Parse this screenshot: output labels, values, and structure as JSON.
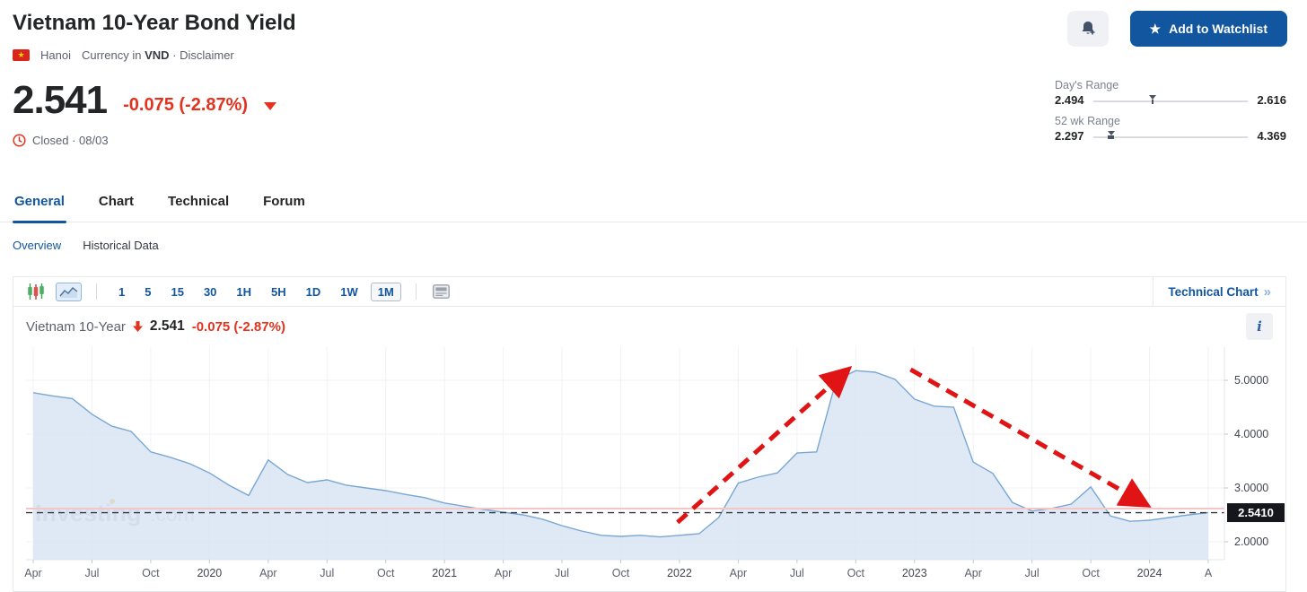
{
  "header": {
    "title": "Vietnam 10-Year Bond Yield",
    "flag_icon": "vietnam-flag",
    "flag_star": "★",
    "location": "Hanoi",
    "currency_prefix": "Currency in",
    "currency": "VND",
    "disclaimer": "· Disclaimer",
    "price": "2.541",
    "change": "-0.075 (-2.87%)",
    "status": "Closed · 08/03",
    "watchlist_label": "Add to Watchlist",
    "watchlist_star": "★"
  },
  "ranges": {
    "day": {
      "label": "Day's Range",
      "low": "2.494",
      "high": "2.616",
      "marker_pct": 38.5
    },
    "week52": {
      "label": "52 wk Range",
      "low": "2.297",
      "high": "4.369",
      "marker_pct": 11.8
    }
  },
  "tabs": [
    {
      "label": "General",
      "active": true
    },
    {
      "label": "Chart",
      "active": false
    },
    {
      "label": "Technical",
      "active": false
    },
    {
      "label": "Forum",
      "active": false
    }
  ],
  "subtabs": [
    {
      "label": "Overview",
      "active": true
    },
    {
      "label": "Historical Data",
      "active": false
    }
  ],
  "toolbar": {
    "intervals": [
      {
        "label": "1"
      },
      {
        "label": "5"
      },
      {
        "label": "15"
      },
      {
        "label": "30"
      },
      {
        "label": "1H"
      },
      {
        "label": "5H"
      },
      {
        "label": "1D"
      },
      {
        "label": "1W"
      },
      {
        "label": "1M",
        "selected": true
      }
    ],
    "technical_chart_label": "Technical Chart",
    "technical_chart_arrow": "»"
  },
  "chart_header": {
    "name": "Vietnam 10-Year",
    "price": "2.541",
    "change": "-0.075 (-2.87%)",
    "info_label": "i"
  },
  "chart_data": {
    "type": "area",
    "title": "Vietnam 10-Year Bond Yield (1M interval)",
    "frequency": "monthly",
    "x_start": "Apr 2019",
    "x_end": "Apr 2024",
    "values": [
      4.77,
      4.71,
      4.66,
      4.37,
      4.15,
      4.05,
      3.67,
      3.57,
      3.45,
      3.28,
      3.05,
      2.86,
      3.52,
      3.25,
      3.1,
      3.15,
      3.05,
      3.0,
      2.95,
      2.88,
      2.82,
      2.72,
      2.66,
      2.6,
      2.55,
      2.5,
      2.42,
      2.3,
      2.2,
      2.12,
      2.1,
      2.12,
      2.09,
      2.12,
      2.15,
      2.45,
      3.09,
      3.2,
      3.28,
      3.65,
      3.67,
      5.0,
      5.18,
      5.15,
      5.02,
      4.65,
      4.52,
      4.5,
      3.48,
      3.27,
      2.73,
      2.57,
      2.62,
      2.7,
      3.02,
      2.48,
      2.38,
      2.4,
      2.45,
      2.5,
      2.541
    ],
    "x_ticks": [
      {
        "i": 0,
        "t": "Apr"
      },
      {
        "i": 3,
        "t": "Jul"
      },
      {
        "i": 6,
        "t": "Oct"
      },
      {
        "i": 9,
        "t": "2020"
      },
      {
        "i": 12,
        "t": "Apr"
      },
      {
        "i": 15,
        "t": "Jul"
      },
      {
        "i": 18,
        "t": "Oct"
      },
      {
        "i": 21,
        "t": "2021"
      },
      {
        "i": 24,
        "t": "Apr"
      },
      {
        "i": 27,
        "t": "Jul"
      },
      {
        "i": 30,
        "t": "Oct"
      },
      {
        "i": 33,
        "t": "2022"
      },
      {
        "i": 36,
        "t": "Apr"
      },
      {
        "i": 39,
        "t": "Jul"
      },
      {
        "i": 42,
        "t": "Oct"
      },
      {
        "i": 45,
        "t": "2023"
      },
      {
        "i": 48,
        "t": "Apr"
      },
      {
        "i": 51,
        "t": "Jul"
      },
      {
        "i": 54,
        "t": "Oct"
      },
      {
        "i": 57,
        "t": "2024"
      },
      {
        "i": 60,
        "t": "A"
      }
    ],
    "y_ticks": [
      {
        "v": 5,
        "t": "5.0000"
      },
      {
        "v": 4,
        "t": "4.0000"
      },
      {
        "v": 3,
        "t": "3.0000"
      },
      {
        "v": 2,
        "t": "2.0000"
      }
    ],
    "ylim": [
      1.667,
      5.617
    ],
    "grid": true,
    "last_price": 2.541,
    "last_price_label": "2.5410",
    "prev_close": 2.616,
    "annotations": [
      {
        "type": "arrow",
        "direction": "up",
        "from_i": 32.9,
        "from_v": 2.36,
        "to_i": 41.3,
        "to_v": 5.1
      },
      {
        "type": "arrow",
        "direction": "down",
        "from_i": 44.8,
        "from_v": 5.2,
        "to_i": 56.5,
        "to_v": 2.76
      }
    ],
    "watermark": "Investing",
    "watermark_suffix": ".com",
    "colors": {
      "line": "#79a7d3",
      "fill": "#d7e4f2",
      "grid": "#f0f2f5",
      "axis_border": "#e1e4e9",
      "dashed": "#30343e",
      "prev_close_line": "#f7c5c5",
      "arrow": "#e01414",
      "tag_bg": "#15171c",
      "tag_text": "#ffffff",
      "x_label": "#5b616e",
      "year_label": "#40454f",
      "y_label": "#40454f",
      "watermark": "#c5c7cd",
      "watermark_dot": "#f5b83d"
    }
  }
}
